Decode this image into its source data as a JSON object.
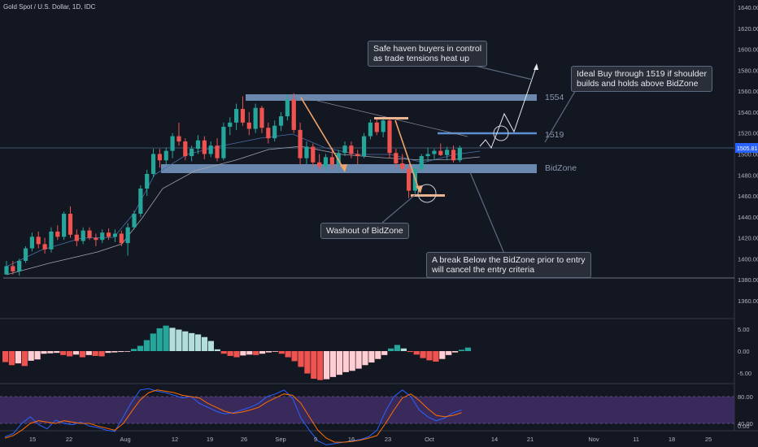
{
  "header": {
    "title": "Gold Spot / U.S. Dollar, 1D, IDC"
  },
  "price_axis": {
    "ticks": [
      "1640.00",
      "1620.00",
      "1600.00",
      "1580.00",
      "1560.00",
      "1540.00",
      "1520.00",
      "1500.00",
      "1480.00",
      "1460.00",
      "1440.00",
      "1420.00",
      "1400.00",
      "1380.00",
      "1360.00"
    ],
    "current_price": "1505.81"
  },
  "hist_axis": {
    "ticks": [
      "5.00",
      "0.00",
      "-5.00"
    ]
  },
  "stoch_axis": {
    "ticks": [
      "80.00",
      "40.00",
      "0.00"
    ]
  },
  "time_axis": {
    "labels": [
      "15",
      "22",
      "Aug",
      "12",
      "19",
      "26",
      "Sep",
      "9",
      "16",
      "23",
      "Oct",
      "14",
      "21",
      "Nov",
      "11",
      "18",
      "25"
    ]
  },
  "zones": {
    "resistance_label": "1554",
    "trigger_label": "1519",
    "support_label": "BidZone"
  },
  "callouts": {
    "safe_haven": "Safe haven buyers in control\nas trade tensions heat up",
    "ideal_buy": "Ideal Buy through 1519 if shoulder\nbuilds and holds above BidZone",
    "washout": "Washout of BidZone",
    "break_below": "A break Below the BidZone prior to entry\nwill cancel the entry criteria"
  },
  "colors": {
    "background": "#131722",
    "bull": "#26a69a",
    "bear": "#ef5350",
    "hist_pos_strong": "#26a69a",
    "hist_pos_weak": "#b2dfdb",
    "hist_neg_strong": "#ef5350",
    "hist_neg_weak": "#ffcdd2",
    "zone": "#7a9cc6",
    "stoch_band": "#3a2a5c",
    "k_line": "#2962ff",
    "d_line": "#ff6d00"
  },
  "chart_data": {
    "type": "candlestick",
    "title": "Gold Spot / U.S. Dollar, 1D, IDC",
    "ylim": [
      1350,
      1650
    ],
    "zones": [
      {
        "name": "1554",
        "level": 1554
      },
      {
        "name": "1519",
        "level": 1519
      },
      {
        "name": "BidZone",
        "level": 1486
      }
    ],
    "candles": [
      [
        1385,
        1398,
        1385,
        1393
      ],
      [
        1393,
        1398,
        1385,
        1388
      ],
      [
        1388,
        1400,
        1384,
        1398
      ],
      [
        1398,
        1412,
        1396,
        1410
      ],
      [
        1410,
        1425,
        1407,
        1421
      ],
      [
        1421,
        1426,
        1410,
        1414
      ],
      [
        1414,
        1420,
        1405,
        1409
      ],
      [
        1409,
        1430,
        1406,
        1426
      ],
      [
        1426,
        1432,
        1418,
        1421
      ],
      [
        1421,
        1445,
        1418,
        1443
      ],
      [
        1443,
        1450,
        1420,
        1423
      ],
      [
        1423,
        1428,
        1412,
        1417
      ],
      [
        1417,
        1430,
        1414,
        1427
      ],
      [
        1427,
        1430,
        1418,
        1420
      ],
      [
        1420,
        1424,
        1412,
        1418
      ],
      [
        1418,
        1428,
        1415,
        1425
      ],
      [
        1425,
        1429,
        1418,
        1421
      ],
      [
        1421,
        1428,
        1416,
        1424
      ],
      [
        1424,
        1427,
        1412,
        1415
      ],
      [
        1415,
        1434,
        1403,
        1430
      ],
      [
        1430,
        1446,
        1428,
        1443
      ],
      [
        1443,
        1470,
        1440,
        1467
      ],
      [
        1467,
        1485,
        1460,
        1481
      ],
      [
        1481,
        1505,
        1478,
        1500
      ],
      [
        1500,
        1505,
        1487,
        1494
      ],
      [
        1494,
        1506,
        1489,
        1503
      ],
      [
        1503,
        1520,
        1496,
        1517
      ],
      [
        1517,
        1530,
        1508,
        1512
      ],
      [
        1512,
        1515,
        1494,
        1498
      ],
      [
        1498,
        1508,
        1493,
        1505
      ],
      [
        1505,
        1518,
        1500,
        1513
      ],
      [
        1513,
        1517,
        1495,
        1500
      ],
      [
        1500,
        1512,
        1497,
        1508
      ],
      [
        1508,
        1515,
        1493,
        1496
      ],
      [
        1496,
        1530,
        1494,
        1526
      ],
      [
        1526,
        1535,
        1518,
        1530
      ],
      [
        1530,
        1548,
        1523,
        1543
      ],
      [
        1543,
        1555,
        1527,
        1530
      ],
      [
        1530,
        1540,
        1518,
        1524
      ],
      [
        1524,
        1548,
        1520,
        1544
      ],
      [
        1544,
        1546,
        1520,
        1525
      ],
      [
        1525,
        1530,
        1510,
        1515
      ],
      [
        1515,
        1532,
        1512,
        1527
      ],
      [
        1527,
        1540,
        1522,
        1536
      ],
      [
        1536,
        1557,
        1532,
        1552
      ],
      [
        1552,
        1558,
        1520,
        1523
      ],
      [
        1523,
        1530,
        1490,
        1496
      ],
      [
        1496,
        1512,
        1490,
        1507
      ],
      [
        1507,
        1510,
        1488,
        1492
      ],
      [
        1492,
        1500,
        1485,
        1488
      ],
      [
        1488,
        1500,
        1484,
        1497
      ],
      [
        1497,
        1506,
        1486,
        1490
      ],
      [
        1490,
        1504,
        1487,
        1501
      ],
      [
        1501,
        1512,
        1498,
        1508
      ],
      [
        1508,
        1512,
        1496,
        1500
      ],
      [
        1500,
        1504,
        1490,
        1498
      ],
      [
        1498,
        1520,
        1496,
        1517
      ],
      [
        1517,
        1533,
        1514,
        1530
      ],
      [
        1530,
        1534,
        1518,
        1521
      ],
      [
        1521,
        1534,
        1516,
        1532
      ],
      [
        1532,
        1533,
        1496,
        1501
      ],
      [
        1501,
        1505,
        1487,
        1491
      ],
      [
        1491,
        1500,
        1484,
        1486
      ],
      [
        1486,
        1490,
        1458,
        1465
      ],
      [
        1465,
        1490,
        1462,
        1486
      ],
      [
        1486,
        1500,
        1484,
        1498
      ],
      [
        1498,
        1506,
        1493,
        1500
      ],
      [
        1500,
        1505,
        1494,
        1503
      ],
      [
        1503,
        1510,
        1498,
        1499
      ],
      [
        1499,
        1507,
        1494,
        1504
      ],
      [
        1504,
        1508,
        1492,
        1494
      ],
      [
        1494,
        1508,
        1492,
        1506
      ]
    ]
  }
}
